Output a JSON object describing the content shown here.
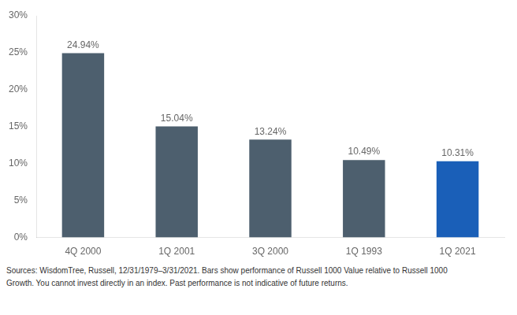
{
  "chart_data": {
    "type": "bar",
    "categories": [
      "4Q 2000",
      "1Q 2001",
      "3Q 2000",
      "1Q 1993",
      "1Q 2021"
    ],
    "values": [
      24.94,
      15.04,
      13.24,
      10.49,
      10.31
    ],
    "value_labels": [
      "24.94%",
      "15.04%",
      "13.24%",
      "10.49%",
      "10.31%"
    ],
    "data_labels": true,
    "colors": [
      "#4d5f6e",
      "#4d5f6e",
      "#4d5f6e",
      "#4d5f6e",
      "#1a5fb8"
    ],
    "ylim": [
      0,
      30
    ],
    "yticks": [
      {
        "value": 0,
        "label": "0%"
      },
      {
        "value": 5,
        "label": "5%"
      },
      {
        "value": 10,
        "label": "10%"
      },
      {
        "value": 15,
        "label": "15%"
      },
      {
        "value": 20,
        "label": "20%"
      },
      {
        "value": 25,
        "label": "25%"
      },
      {
        "value": 30,
        "label": "30%"
      }
    ],
    "grid": false,
    "annotations": [
      "Sources: WisdomTree, Russell, 12/31/1979–3/31/2021. Bars show performance of Russell 1000 Value relative to Russell 1000",
      "Growth. You cannot invest directly in an index. Past performance is not indicative of future returns."
    ]
  }
}
